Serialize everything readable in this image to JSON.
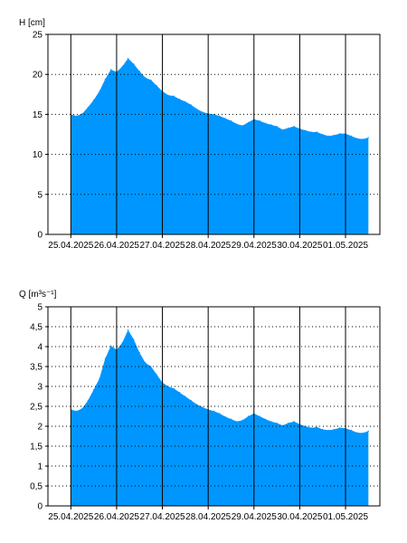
{
  "colors": {
    "fill": "#0096ff",
    "frame": "#000000",
    "grid": "#000000",
    "background": "#ffffff"
  },
  "chart_data": [
    {
      "type": "area",
      "ylabel": "H [cm]",
      "ylim": [
        0,
        25
      ],
      "yticks": [
        "0",
        "5",
        "10",
        "15",
        "20",
        "25"
      ],
      "xlim": [
        "2025-04-24T12:00",
        "2025-05-01T18:00"
      ],
      "x_tick_labels": [
        "25.04.2025",
        "26.04.2025",
        "27.04.2025",
        "28.04.2025",
        "29.04.2025",
        "30.04.2025",
        "01.05.2025"
      ],
      "grid": true,
      "legend": "none",
      "x": [
        "2025-04-25T00:00",
        "2025-04-25T03:00",
        "2025-04-25T06:00",
        "2025-04-25T09:00",
        "2025-04-25T12:00",
        "2025-04-25T15:00",
        "2025-04-25T18:00",
        "2025-04-25T21:00",
        "2025-04-26T00:00",
        "2025-04-26T03:00",
        "2025-04-26T06:00",
        "2025-04-26T09:00",
        "2025-04-26T12:00",
        "2025-04-26T15:00",
        "2025-04-26T18:00",
        "2025-04-26T21:00",
        "2025-04-27T00:00",
        "2025-04-27T03:00",
        "2025-04-27T06:00",
        "2025-04-27T09:00",
        "2025-04-27T12:00",
        "2025-04-27T15:00",
        "2025-04-27T18:00",
        "2025-04-27T21:00",
        "2025-04-28T00:00",
        "2025-04-28T03:00",
        "2025-04-28T06:00",
        "2025-04-28T09:00",
        "2025-04-28T12:00",
        "2025-04-28T15:00",
        "2025-04-28T18:00",
        "2025-04-28T21:00",
        "2025-04-29T00:00",
        "2025-04-29T03:00",
        "2025-04-29T06:00",
        "2025-04-29T09:00",
        "2025-04-29T12:00",
        "2025-04-29T15:00",
        "2025-04-29T18:00",
        "2025-04-29T21:00",
        "2025-04-30T00:00",
        "2025-04-30T03:00",
        "2025-04-30T06:00",
        "2025-04-30T09:00",
        "2025-04-30T12:00",
        "2025-04-30T15:00",
        "2025-04-30T18:00",
        "2025-04-30T21:00",
        "2025-05-01T00:00",
        "2025-05-01T03:00",
        "2025-05-01T06:00",
        "2025-05-01T09:00",
        "2025-05-01T12:00"
      ],
      "values": [
        15.0,
        14.8,
        15.1,
        15.9,
        16.8,
        17.9,
        19.4,
        20.6,
        20.3,
        21.0,
        22.0,
        21.3,
        20.4,
        19.6,
        19.3,
        18.6,
        17.9,
        17.4,
        17.3,
        16.9,
        16.6,
        16.2,
        15.7,
        15.3,
        15.1,
        15.0,
        14.8,
        14.5,
        14.2,
        13.8,
        13.6,
        14.0,
        14.4,
        14.2,
        13.9,
        13.7,
        13.5,
        13.1,
        13.3,
        13.5,
        13.2,
        13.0,
        12.8,
        12.8,
        12.5,
        12.3,
        12.4,
        12.6,
        12.6,
        12.3,
        12.0,
        11.9,
        12.1
      ]
    },
    {
      "type": "area",
      "ylabel": "Q [m³s⁻¹]",
      "ylim": [
        0,
        5
      ],
      "yticks": [
        "0",
        "0,5",
        "1",
        "1,5",
        "2",
        "2,5",
        "3",
        "3,5",
        "4",
        "4,5",
        "5"
      ],
      "xlim": [
        "2025-04-24T12:00",
        "2025-05-01T18:00"
      ],
      "x_tick_labels": [
        "25.04.2025",
        "26.04.2025",
        "27.04.2025",
        "28.04.2025",
        "29.04.2025",
        "30.04.2025",
        "01.05.2025"
      ],
      "grid": true,
      "legend": "none",
      "x": [
        "2025-04-25T00:00",
        "2025-04-25T03:00",
        "2025-04-25T06:00",
        "2025-04-25T09:00",
        "2025-04-25T12:00",
        "2025-04-25T15:00",
        "2025-04-25T18:00",
        "2025-04-25T21:00",
        "2025-04-26T00:00",
        "2025-04-26T03:00",
        "2025-04-26T06:00",
        "2025-04-26T09:00",
        "2025-04-26T12:00",
        "2025-04-26T15:00",
        "2025-04-26T18:00",
        "2025-04-26T21:00",
        "2025-04-27T00:00",
        "2025-04-27T03:00",
        "2025-04-27T06:00",
        "2025-04-27T09:00",
        "2025-04-27T12:00",
        "2025-04-27T15:00",
        "2025-04-27T18:00",
        "2025-04-27T21:00",
        "2025-04-28T00:00",
        "2025-04-28T03:00",
        "2025-04-28T06:00",
        "2025-04-28T09:00",
        "2025-04-28T12:00",
        "2025-04-28T15:00",
        "2025-04-28T18:00",
        "2025-04-28T21:00",
        "2025-04-29T00:00",
        "2025-04-29T03:00",
        "2025-04-29T06:00",
        "2025-04-29T09:00",
        "2025-04-29T12:00",
        "2025-04-29T15:00",
        "2025-04-29T18:00",
        "2025-04-29T21:00",
        "2025-04-30T00:00",
        "2025-04-30T03:00",
        "2025-04-30T06:00",
        "2025-04-30T09:00",
        "2025-04-30T12:00",
        "2025-04-30T15:00",
        "2025-04-30T18:00",
        "2025-04-30T21:00",
        "2025-05-01T00:00",
        "2025-05-01T03:00",
        "2025-05-01T06:00",
        "2025-05-01T09:00",
        "2025-05-01T12:00"
      ],
      "values": [
        2.42,
        2.38,
        2.45,
        2.65,
        2.92,
        3.2,
        3.7,
        4.02,
        3.92,
        4.1,
        4.42,
        4.18,
        3.85,
        3.6,
        3.5,
        3.3,
        3.1,
        3.0,
        2.95,
        2.85,
        2.75,
        2.65,
        2.55,
        2.48,
        2.42,
        2.38,
        2.32,
        2.24,
        2.18,
        2.12,
        2.15,
        2.25,
        2.32,
        2.25,
        2.18,
        2.12,
        2.08,
        2.02,
        2.08,
        2.12,
        2.05,
        2.0,
        1.96,
        1.98,
        1.92,
        1.9,
        1.92,
        1.96,
        1.95,
        1.9,
        1.84,
        1.83,
        1.88
      ]
    }
  ]
}
